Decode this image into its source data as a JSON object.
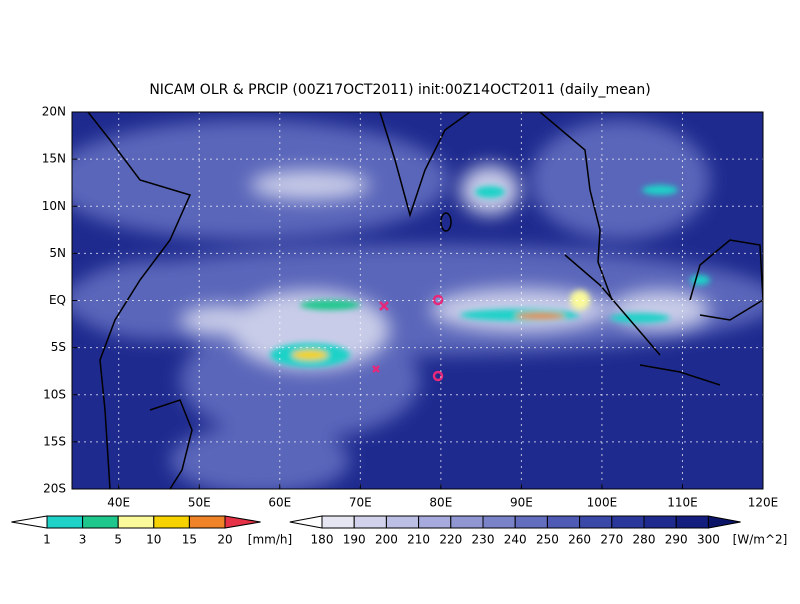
{
  "title": "NICAM OLR & PRCIP (00Z17OCT2011) init:00Z14OCT2011 (daily_mean)",
  "map": {
    "lon_range": [
      34.2,
      120
    ],
    "lat_range": [
      -20,
      20
    ],
    "lon_ticks": [
      {
        "value": 40,
        "label": "40E"
      },
      {
        "value": 50,
        "label": "50E"
      },
      {
        "value": 60,
        "label": "60E"
      },
      {
        "value": 70,
        "label": "70E"
      },
      {
        "value": 80,
        "label": "80E"
      },
      {
        "value": 90,
        "label": "90E"
      },
      {
        "value": 100,
        "label": "100E"
      },
      {
        "value": 110,
        "label": "110E"
      },
      {
        "value": 120,
        "label": "120E"
      }
    ],
    "lat_ticks": [
      {
        "value": 20,
        "label": "20N"
      },
      {
        "value": 15,
        "label": "15N"
      },
      {
        "value": 10,
        "label": "10N"
      },
      {
        "value": 5,
        "label": "5N"
      },
      {
        "value": 0,
        "label": "EQ"
      },
      {
        "value": -5,
        "label": "5S"
      },
      {
        "value": -10,
        "label": "10S"
      },
      {
        "value": -15,
        "label": "15S"
      },
      {
        "value": -20,
        "label": "20S"
      }
    ]
  },
  "precip_colorbar": {
    "labels": [
      1,
      3,
      5,
      10,
      15,
      20
    ],
    "unit": "[mm/h]",
    "colors": [
      "#ffffff",
      "#1ed2c8",
      "#1ec88c",
      "#fafa9a",
      "#f5d200",
      "#f08228",
      "#e63246"
    ]
  },
  "olr_colorbar": {
    "labels": [
      180,
      190,
      200,
      210,
      220,
      230,
      240,
      250,
      260,
      270,
      280,
      290,
      300
    ],
    "unit": "[W/m^2]",
    "colors": [
      "#ffffff",
      "#e6e6f2",
      "#d2d2ec",
      "#bcbee4",
      "#a6aadc",
      "#9096d2",
      "#7a82c8",
      "#646ebe",
      "#4e5ab4",
      "#3a48a8",
      "#2a389c",
      "#1e2a8e",
      "#141e7e",
      "#0c1468"
    ]
  }
}
